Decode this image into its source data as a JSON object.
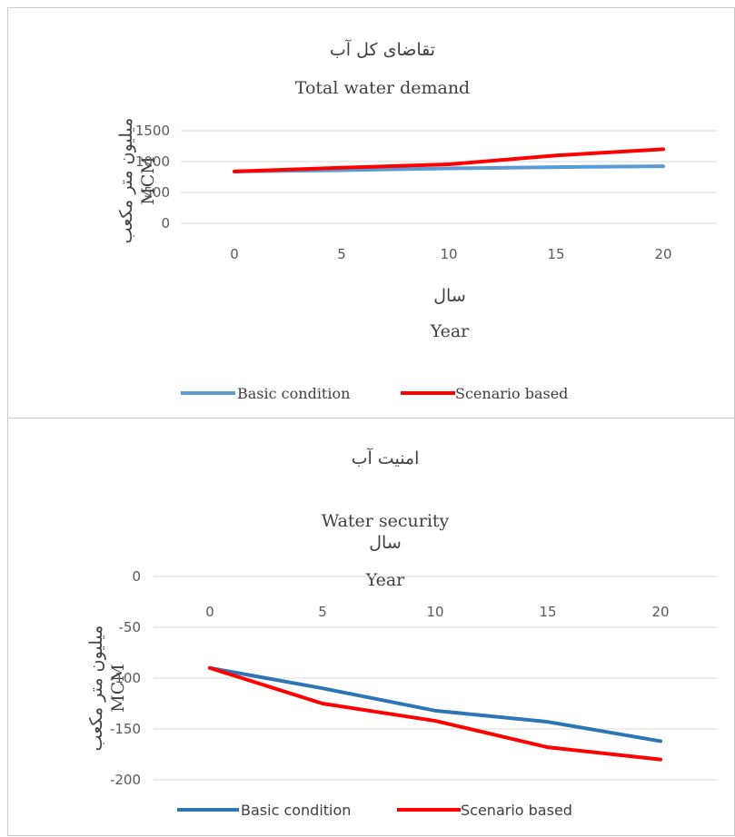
{
  "chart_data": [
    {
      "type": "line",
      "title_fa": "تقاضای کل آب",
      "title": "Total water demand",
      "xlabel_fa": "سال",
      "xlabel": "Year",
      "ylabel_fa": "میلیون متر مکعب",
      "ylabel": "MCM",
      "x": [
        0,
        5,
        10,
        15,
        20
      ],
      "x_ticks": [
        "0",
        "5",
        "10",
        "15",
        "20"
      ],
      "y_ticks": [
        "0",
        "500",
        "1000",
        "1500"
      ],
      "ylim": [
        0,
        1500
      ],
      "xlim": [
        -2.5,
        22.5
      ],
      "grid": true,
      "legend": "bottom",
      "series": [
        {
          "name": "Basic condition",
          "color": "#5b9bd5",
          "values": [
            840,
            860,
            890,
            910,
            925
          ]
        },
        {
          "name": "Scenario based",
          "color": "#ff0000",
          "values": [
            840,
            900,
            955,
            1100,
            1200
          ]
        }
      ]
    },
    {
      "type": "line",
      "title_fa": "امنیت آب",
      "title": "Water security",
      "xlabel_fa": "سال",
      "xlabel": "Year",
      "ylabel_fa": "میلیون متر مکعب",
      "ylabel": "MCM",
      "x": [
        0,
        5,
        10,
        15,
        20
      ],
      "x_ticks": [
        "0",
        "5",
        "10",
        "15",
        "20"
      ],
      "y_ticks": [
        "0",
        "-50",
        "-100",
        "-150",
        "-200"
      ],
      "ylim": [
        -200,
        0
      ],
      "xlim": [
        -2.5,
        22.5
      ],
      "grid": true,
      "legend": "bottom",
      "series": [
        {
          "name": "Basic condition",
          "color": "#2e75b6",
          "values": [
            -90,
            -110,
            -132,
            -143,
            -162
          ]
        },
        {
          "name": "Scenario based",
          "color": "#ff0000",
          "values": [
            -90,
            -125,
            -142,
            -168,
            -180
          ]
        }
      ]
    }
  ]
}
